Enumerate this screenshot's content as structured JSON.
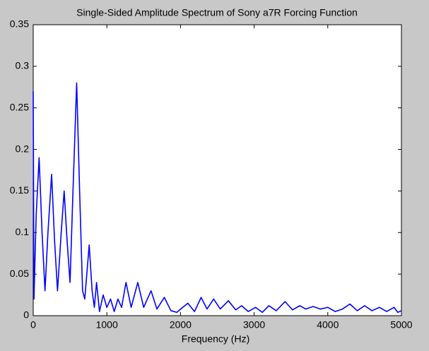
{
  "chart_data": {
    "type": "line",
    "title": "Single-Sided Amplitude Spectrum of Sony a7R Forcing  Function",
    "x_label": "Frequency (Hz)",
    "x": [
      0,
      10,
      40,
      80,
      120,
      160,
      200,
      250,
      290,
      330,
      380,
      420,
      460,
      500,
      540,
      590,
      630,
      670,
      700,
      760,
      800,
      830,
      860,
      900,
      950,
      1000,
      1050,
      1100,
      1150,
      1200,
      1260,
      1330,
      1420,
      1500,
      1600,
      1680,
      1780,
      1870,
      1950,
      2030,
      2100,
      2190,
      2280,
      2360,
      2450,
      2540,
      2650,
      2750,
      2830,
      2920,
      3020,
      3110,
      3200,
      3300,
      3420,
      3520,
      3620,
      3700,
      3800,
      3900,
      4000,
      4100,
      4200,
      4300,
      4400,
      4500,
      4600,
      4700,
      4800,
      4900,
      4950,
      5000
    ],
    "series": [
      {
        "color": "#0000ff",
        "values": [
          0.27,
          0.02,
          0.12,
          0.19,
          0.1,
          0.03,
          0.1,
          0.17,
          0.09,
          0.03,
          0.1,
          0.15,
          0.09,
          0.04,
          0.15,
          0.28,
          0.15,
          0.03,
          0.02,
          0.085,
          0.03,
          0.01,
          0.04,
          0.005,
          0.025,
          0.01,
          0.02,
          0.005,
          0.02,
          0.01,
          0.04,
          0.01,
          0.04,
          0.01,
          0.03,
          0.008,
          0.022,
          0.006,
          0.004,
          0.01,
          0.015,
          0.005,
          0.022,
          0.008,
          0.02,
          0.008,
          0.018,
          0.007,
          0.012,
          0.005,
          0.01,
          0.004,
          0.012,
          0.006,
          0.017,
          0.007,
          0.012,
          0.008,
          0.011,
          0.008,
          0.01,
          0.005,
          0.008,
          0.014,
          0.006,
          0.012,
          0.006,
          0.01,
          0.005,
          0.01,
          0.004,
          0.006
        ]
      }
    ],
    "xlim": [
      0,
      5000
    ],
    "xticks": [
      0,
      1000,
      2000,
      3000,
      4000,
      5000
    ],
    "ylim": [
      0,
      0.35
    ],
    "yticks": [
      0,
      0.05,
      0.1,
      0.15,
      0.2,
      0.25,
      0.3,
      0.35
    ],
    "grid": false
  }
}
